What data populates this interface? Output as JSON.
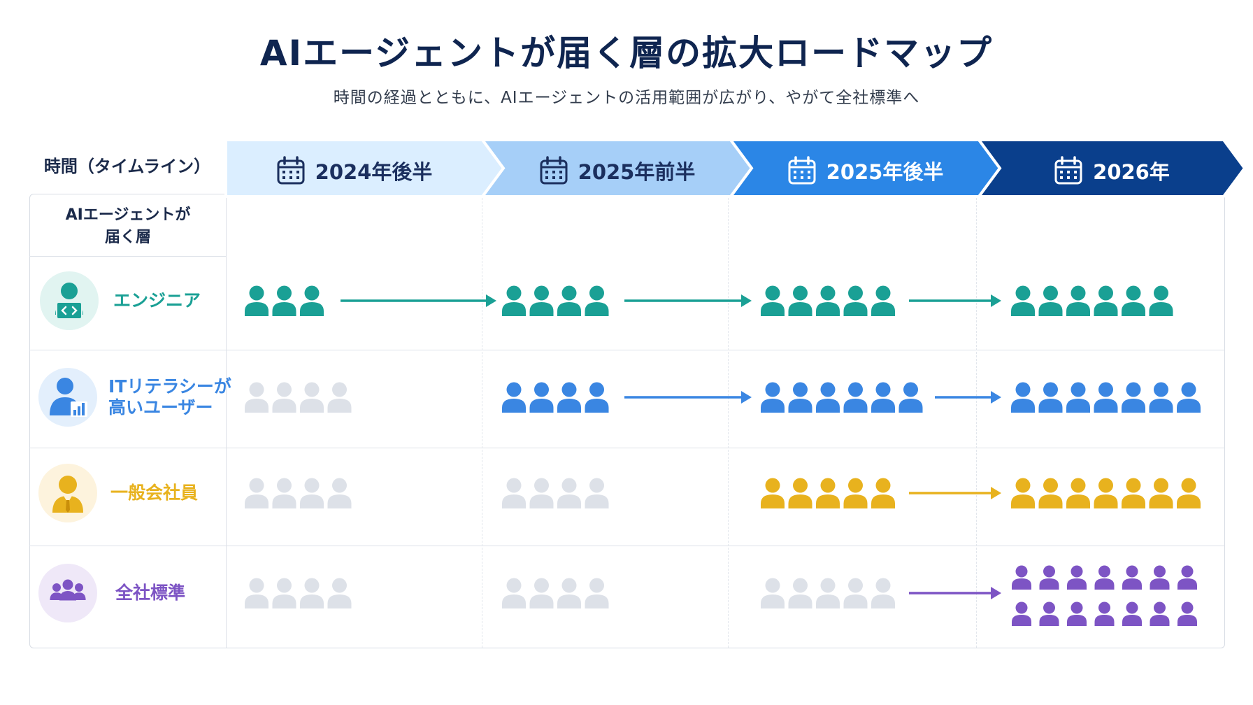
{
  "title": "AIエージェントが届く層の拡大ロードマップ",
  "subtitle": "時間の経過とともに、AIエージェントの活用範囲が広がり、やがて全社標準へ",
  "timeline_label": "時間（タイムライン）",
  "layer_header": "AIエージェントが\n届く層",
  "phases": [
    {
      "label": "2024年後半",
      "fill": "#dbeeff",
      "text_color": "#1b2f5e",
      "icon": "calendar-icon"
    },
    {
      "label": "2025年前半",
      "fill": "#a6cff8",
      "text_color": "#1b2f5e",
      "icon": "calendar-icon"
    },
    {
      "label": "2025年後半",
      "fill": "#2b86e6",
      "text_color": "#ffffff",
      "icon": "calendar-icon"
    },
    {
      "label": "2026年",
      "fill": "#0a3f8c",
      "text_color": "#ffffff",
      "icon": "calendar-icon"
    }
  ],
  "inactive_color": "#dde1e8",
  "layers": [
    {
      "name": "エンジニア",
      "color": "#1aa095",
      "icon_bg": "#e1f4f1",
      "icon": "engineer-laptop-icon",
      "counts": [
        3,
        4,
        5,
        6
      ],
      "active_from": 0,
      "arrows": [
        true,
        true,
        true
      ]
    },
    {
      "name": "ITリテラシーが\n高いユーザー",
      "color": "#3a86e2",
      "icon_bg": "#e3effc",
      "icon": "user-chart-icon",
      "counts": [
        4,
        4,
        6,
        7
      ],
      "active_from": 1,
      "arrows": [
        false,
        true,
        true
      ]
    },
    {
      "name": "一般会社員",
      "color": "#e8b21e",
      "icon_bg": "#fdf3dd",
      "icon": "office-worker-icon",
      "counts": [
        4,
        4,
        5,
        7
      ],
      "active_from": 2,
      "arrows": [
        false,
        false,
        true
      ]
    },
    {
      "name": "全社標準",
      "color": "#7d54c4",
      "icon_bg": "#efe8f8",
      "icon": "group-icon",
      "counts": [
        4,
        4,
        5,
        14
      ],
      "active_from": 3,
      "arrows": [
        false,
        false,
        true
      ]
    }
  ]
}
